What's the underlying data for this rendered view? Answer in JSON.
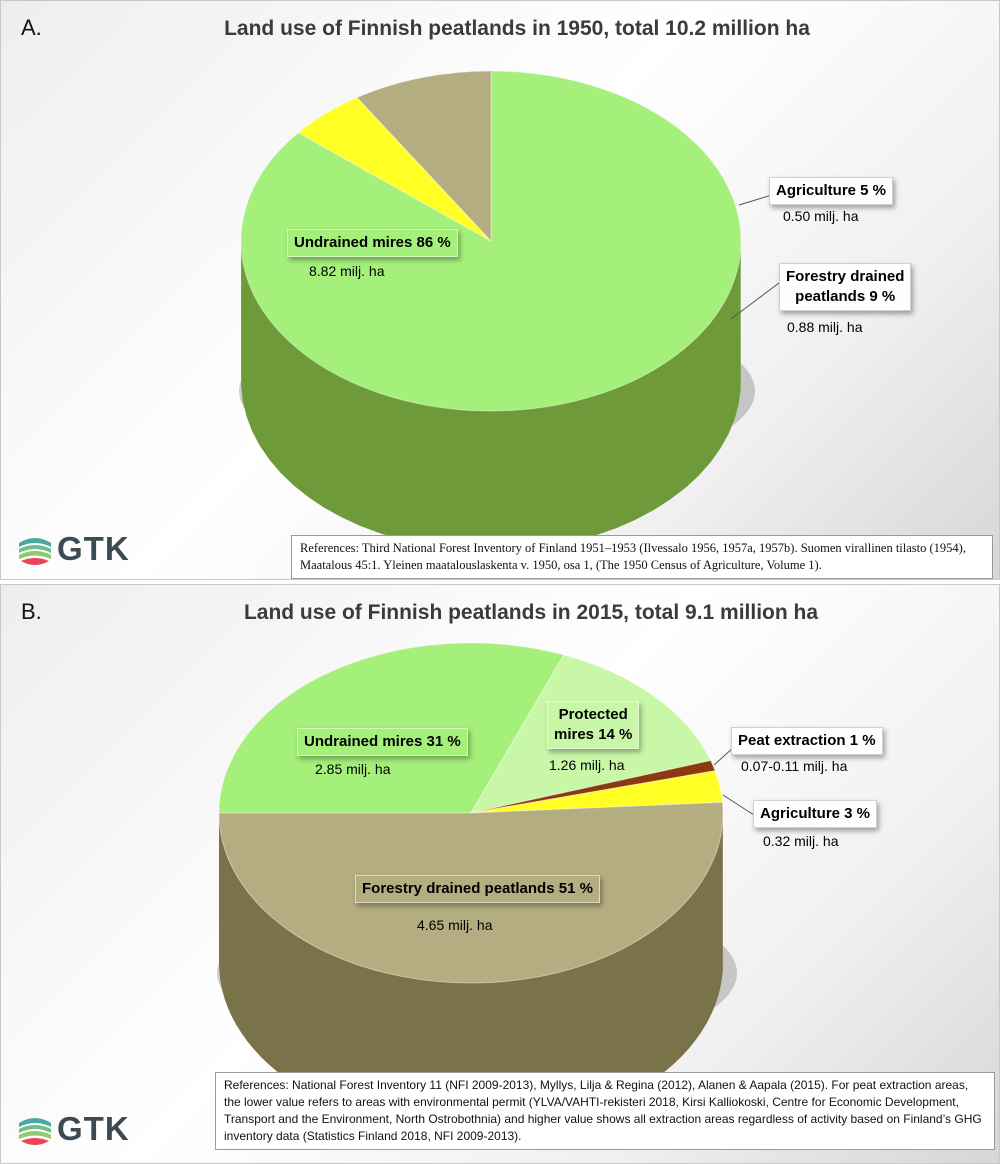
{
  "chart_data": [
    {
      "type": "pie",
      "letter": "A.",
      "title": "Land use of Finnish peatlands in 1950, total 10.2 million ha",
      "slices": [
        {
          "label": "Undrained mires 86 %",
          "percent": 86,
          "area": "8.82 milj. ha",
          "color": "#a4f07a",
          "side": "#6e9a3a"
        },
        {
          "label": "Agriculture 5 %",
          "percent": 5,
          "area": "0.50 milj. ha",
          "color": "#ffff26",
          "side": "#b8b400"
        },
        {
          "label": "Forestry drained peatlands 9 %",
          "label_lines": [
            "Forestry drained",
            "peatlands 9 %"
          ],
          "percent": 9,
          "area": "0.88 milj. ha",
          "color": "#b5ad82",
          "side": "#7d7552"
        }
      ],
      "references": "References: Third National Forest Inventory of Finland 1951–1953 (Ilvessalo 1956, 1957a, 1957b). Suomen virallinen tilasto (1954), Maatalous 45:1. Yleinen maatalouslaskenta v. 1950, osa 1, (The 1950 Census of Agriculture, Volume 1).",
      "logo": "GTK"
    },
    {
      "type": "pie",
      "letter": "B.",
      "title": "Land use of Finnish peatlands in 2015, total 9.1 million ha",
      "slices": [
        {
          "label": "Undrained mires 31 %",
          "percent": 31,
          "area": "2.85 milj. ha",
          "color": "#a4f07a",
          "side": "#6e9a3a"
        },
        {
          "label": "Protected mires 14 %",
          "label_lines": [
            "Protected",
            "mires 14 %"
          ],
          "percent": 14,
          "area": "1.26 milj. ha",
          "color": "#c9f7a8",
          "side": "#8fb86a"
        },
        {
          "label": "Peat extraction 1 %",
          "percent": 1,
          "area": "0.07-0.11 milj. ha",
          "color": "#8b3a10",
          "side": "#5a2006"
        },
        {
          "label": "Agriculture 3 %",
          "percent": 3,
          "area": "0.32 milj. ha",
          "color": "#ffff26",
          "side": "#b8b400"
        },
        {
          "label": "Forestry drained peatlands 51 %",
          "percent": 51,
          "area": "4.65 milj. ha",
          "color": "#b5ad82",
          "side": "#7a7249"
        }
      ],
      "references": "References: National Forest Inventory 11 (NFI 2009-2013), Myllys, Lilja & Regina (2012), Alanen & Aapala (2015). For peat extraction areas, the lower value refers to areas with environmental permit (YLVA/VAHTI-rekisteri 2018, Kirsi Kalliokoski, Centre for Economic Development, Transport and the Environment, North Ostrobothnia) and higher value shows all extraction areas regardless of activity based on Finland’s GHG inventory data (Statistics Finland 2018, NFI 2009-2013).",
      "logo": "GTK"
    }
  ]
}
